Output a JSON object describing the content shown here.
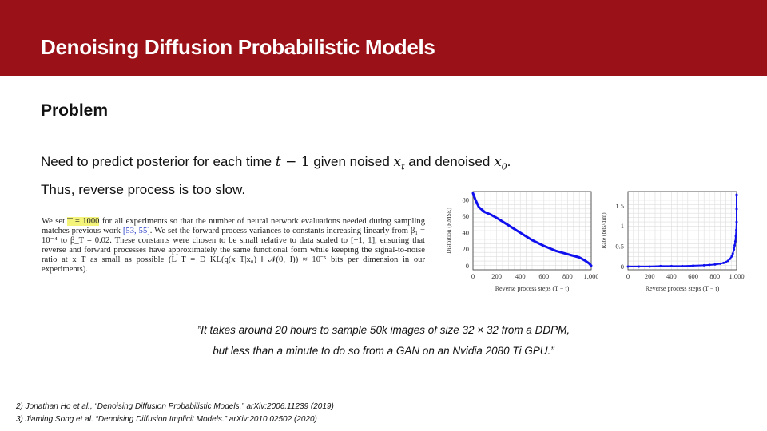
{
  "header": {
    "title": "Denoising Diffusion Probabilistic Models",
    "bar_color": "#9a1218"
  },
  "section": {
    "title": "Problem"
  },
  "text": {
    "line1_a": "Need to predict posterior for each time ",
    "line1_t": "t",
    "line1_minus": " − 1",
    "line1_b": " given noised ",
    "line1_x": "x",
    "line1_xt_sub": "t",
    "line1_c": " and denoised ",
    "line1_x0_sub": "0",
    "line1_end": ".",
    "line2": "Thus, reverse process is too slow."
  },
  "excerpt": {
    "p1": "We set ",
    "hl": "T = 1000",
    "p2": " for all experiments so that the number of neural network evaluations needed during sampling matches previous work ",
    "cite": "[53, 55]",
    "p3": ". We set the forward process variances to constants increasing linearly from β₁ = 10⁻⁴ to β_T = 0.02. These constants were chosen to be small relative to data scaled to [−1, 1], ensuring that reverse and forward processes have approximately the same functional form while keeping the signal-to-noise ratio at x_T as small as possible (L_T = D_KL(q(x_T|x₀) ‖ 𝒩(0, I)) ≈ 10⁻⁵ bits per dimension in our experiments)."
  },
  "chart_data": [
    {
      "type": "line",
      "xlabel": "Reverse process steps (T − t)",
      "ylabel": "Distortion (RMSE)",
      "xlim": [
        0,
        1000
      ],
      "ylim": [
        -5,
        90
      ],
      "xticks": [
        0,
        200,
        400,
        600,
        800,
        1000
      ],
      "xtick_labels": [
        "0",
        "200",
        "400",
        "600",
        "800",
        "1,000"
      ],
      "yticks": [
        0,
        20,
        40,
        60,
        80
      ],
      "grid": true,
      "color": "#1010ee",
      "x": [
        0,
        20,
        50,
        100,
        150,
        200,
        300,
        400,
        500,
        600,
        700,
        800,
        850,
        900,
        950,
        980,
        1000
      ],
      "y": [
        88,
        80,
        71,
        65,
        62,
        58,
        49,
        40,
        31,
        24,
        18,
        14,
        12,
        10,
        6,
        3,
        0
      ]
    },
    {
      "type": "scatter",
      "xlabel": "Reverse process steps (T − t)",
      "ylabel": "Rate (bits/dim)",
      "xlim": [
        0,
        1000
      ],
      "ylim": [
        -0.08,
        1.85
      ],
      "xticks": [
        0,
        200,
        400,
        600,
        800,
        1000
      ],
      "xtick_labels": [
        "0",
        "200",
        "400",
        "600",
        "800",
        "1,000"
      ],
      "yticks": [
        0,
        0.5,
        1,
        1.5
      ],
      "ytick_labels": [
        "0",
        "0.5",
        "1",
        "1.5"
      ],
      "grid": true,
      "color": "#1010ee",
      "x": [
        0,
        100,
        200,
        300,
        400,
        500,
        600,
        700,
        750,
        800,
        850,
        880,
        900,
        920,
        940,
        955,
        965,
        975,
        982,
        988,
        993,
        997,
        1000,
        1000,
        1000
      ],
      "y": [
        0,
        0,
        0,
        0.01,
        0.01,
        0.01,
        0.02,
        0.03,
        0.04,
        0.05,
        0.07,
        0.09,
        0.11,
        0.14,
        0.19,
        0.25,
        0.32,
        0.42,
        0.52,
        0.62,
        0.75,
        0.9,
        1.1,
        1.42,
        1.77
      ]
    }
  ],
  "quote": {
    "line1": "”It takes around 20 hours to sample 50k images of size 32 × 32 from a DDPM,",
    "line2": "but less than a minute to do so from a GAN on an Nvidia 2080 Ti GPU.”"
  },
  "references": [
    "2) Jonathan Ho et al., “Denoising Diffusion Probabilistic Models.” arXiv:2006.11239 (2019)",
    "3) Jiaming Song et al. “Denoising Diffusion Implicit Models.” arXiv:2010.02502 (2020)"
  ]
}
